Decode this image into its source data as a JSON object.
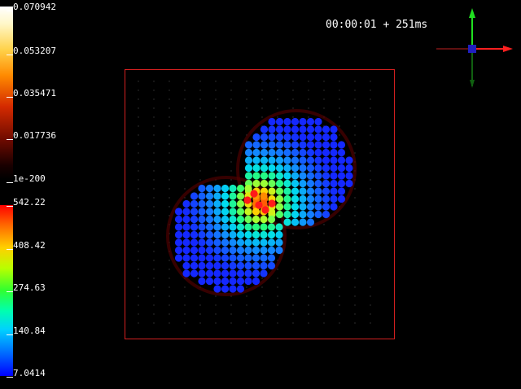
{
  "timer": "00:00:01 + 251ms",
  "legend_top": {
    "labels": [
      "0.070942",
      "0.053207",
      "0.035471",
      "0.017736",
      "1e-200"
    ]
  },
  "legend_bottom": {
    "labels": [
      "542.22",
      "408.42",
      "274.63",
      "140.84",
      "7.0414"
    ]
  },
  "colors": {
    "box_border": "#d42020",
    "axis_x": "#ff2020",
    "axis_y": "#20e020",
    "axis_z": "#2020c0"
  }
}
